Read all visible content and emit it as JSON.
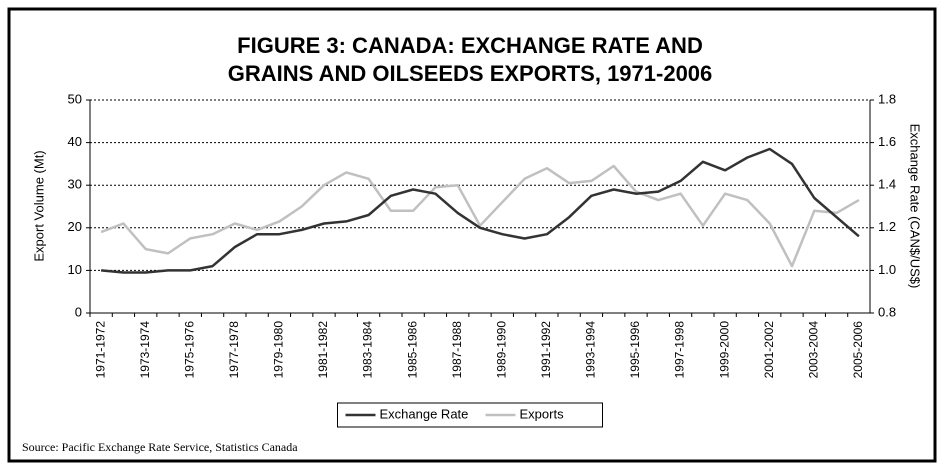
{
  "chart_data": {
    "type": "line",
    "title": [
      "FIGURE 3: CANADA: EXCHANGE RATE AND",
      "GRAINS AND OILSEEDS EXPORTS, 1971-2006"
    ],
    "ylabel": "Export Volume (Mt)",
    "y2label": "Exchange Rate (CAN$/US$)",
    "source": "Source: Pacific Exchange Rate Service, Statistics Canada",
    "categories": [
      "1971-1972",
      null,
      "1973-1974",
      null,
      "1975-1976",
      null,
      "1977-1978",
      null,
      "1979-1980",
      null,
      "1981-1982",
      null,
      "1983-1984",
      null,
      "1985-1986",
      null,
      "1987-1988",
      null,
      "1989-1990",
      null,
      "1991-1992",
      null,
      "1993-1994",
      null,
      "1995-1996",
      null,
      "1997-1998",
      null,
      "1999-2000",
      null,
      "2001-2002",
      null,
      "2003-2004",
      null,
      "2005-2006"
    ],
    "series": [
      {
        "name": "Exchange Rate",
        "color": "#333333",
        "axis": "y2",
        "values": [
          1.0,
          0.99,
          0.99,
          1.0,
          1.0,
          1.02,
          1.11,
          1.17,
          1.17,
          1.19,
          1.22,
          1.23,
          1.26,
          1.35,
          1.38,
          1.36,
          1.27,
          1.2,
          1.17,
          1.15,
          1.17,
          1.25,
          1.35,
          1.38,
          1.36,
          1.37,
          1.42,
          1.51,
          1.47,
          1.53,
          1.57,
          1.5,
          1.34,
          1.25,
          1.16
        ]
      },
      {
        "name": "Exports",
        "color": "#c0c0c0",
        "values": [
          19,
          21,
          15,
          14,
          17.5,
          18.5,
          21,
          19.5,
          21.5,
          25,
          30,
          33,
          31.5,
          24,
          24,
          29.5,
          30,
          20.5,
          26,
          31.5,
          34,
          30.5,
          31,
          34.5,
          28.5,
          26.5,
          28,
          20.5,
          28,
          26.5,
          21,
          11,
          24,
          23.5,
          26.5
        ]
      }
    ],
    "ylim": [
      0,
      50
    ],
    "yticks": [
      0,
      10,
      20,
      30,
      40,
      50
    ],
    "y2lim": [
      0.8,
      1.8
    ],
    "y2ticks": [
      0.8,
      {
        "value": 1,
        "label": "1.0"
      },
      1.2,
      1.4,
      1.6,
      1.8
    ],
    "grid": true,
    "legend": "bottom"
  }
}
